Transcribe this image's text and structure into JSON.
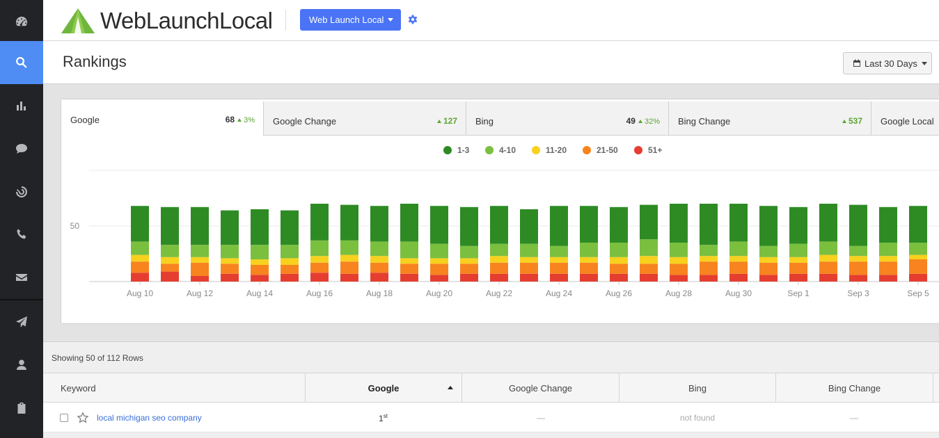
{
  "app": {
    "brand": "WebLaunchLocal",
    "brand_part1": "Web",
    "brand_part2": "Launch",
    "brand_part3": "Local"
  },
  "header": {
    "account_label": "Web Launch Local",
    "settings_icon": "gear-icon"
  },
  "sidebar": {
    "items": [
      {
        "name": "dashboard",
        "icon": "dashboard-icon",
        "active": false
      },
      {
        "name": "rankings",
        "icon": "search-icon",
        "active": true
      },
      {
        "name": "reports",
        "icon": "bar-chart-icon",
        "active": false
      },
      {
        "name": "reviews",
        "icon": "chat-bubble-icon",
        "active": false
      },
      {
        "name": "citations",
        "icon": "target-icon",
        "active": false
      },
      {
        "name": "calls",
        "icon": "phone-icon",
        "active": false
      },
      {
        "name": "email",
        "icon": "envelope-icon",
        "active": false
      },
      {
        "name": "campaigns",
        "icon": "send-icon",
        "active": false
      },
      {
        "name": "users",
        "icon": "user-icon",
        "active": false
      },
      {
        "name": "tasks",
        "icon": "clipboard-icon",
        "active": false
      }
    ]
  },
  "page": {
    "title": "Rankings",
    "date_range": "Last 30 Days"
  },
  "tabs": [
    {
      "label": "Google",
      "value": "68",
      "change": "3%"
    },
    {
      "label": "Google Change",
      "value": "127"
    },
    {
      "label": "Bing",
      "value": "49",
      "change": "32%"
    },
    {
      "label": "Bing Change",
      "value": "537"
    },
    {
      "label": "Google Local"
    }
  ],
  "colors": {
    "accent": "#4a74f5",
    "pos_1_3": "#2e8b24",
    "pos_4_10": "#7bbf3f",
    "pos_11_20": "#f7d11e",
    "pos_21_50": "#f7841f",
    "pos_51_plus": "#e53e30",
    "up": "#5aa532"
  },
  "chart_data": {
    "type": "bar",
    "stacked": true,
    "legend_position": "top",
    "grid": true,
    "y_tick_labels": [
      "50"
    ],
    "categories": [
      "Aug 10",
      "Aug 11",
      "Aug 12",
      "Aug 13",
      "Aug 14",
      "Aug 15",
      "Aug 16",
      "Aug 17",
      "Aug 18",
      "Aug 19",
      "Aug 20",
      "Aug 21",
      "Aug 22",
      "Aug 23",
      "Aug 24",
      "Aug 25",
      "Aug 26",
      "Aug 27",
      "Aug 28",
      "Aug 29",
      "Aug 30",
      "Aug 31",
      "Sep 1",
      "Sep 2",
      "Sep 3",
      "Sep 4",
      "Sep 5"
    ],
    "x_tick_labels": [
      "Aug 10",
      "Aug 12",
      "Aug 14",
      "Aug 16",
      "Aug 18",
      "Aug 20",
      "Aug 22",
      "Aug 24",
      "Aug 26",
      "Aug 28",
      "Aug 30",
      "Sep 1",
      "Sep 3",
      "Sep 5"
    ],
    "ylim": [
      0,
      100
    ],
    "series": [
      {
        "name": "51+",
        "color": "#e53e30",
        "values": [
          8,
          9,
          5,
          7,
          6,
          7,
          8,
          7,
          8,
          7,
          6,
          7,
          7,
          7,
          7,
          7,
          7,
          7,
          6,
          6,
          7,
          6,
          7,
          7,
          6,
          6,
          7
        ]
      },
      {
        "name": "21-50",
        "color": "#f7841f",
        "values": [
          10,
          7,
          12,
          9,
          9,
          8,
          9,
          11,
          9,
          9,
          10,
          9,
          10,
          10,
          10,
          10,
          9,
          9,
          10,
          12,
          11,
          11,
          10,
          11,
          12,
          12,
          13
        ]
      },
      {
        "name": "11-20",
        "color": "#f7d11e",
        "values": [
          6,
          6,
          5,
          5,
          5,
          6,
          6,
          6,
          6,
          5,
          5,
          5,
          6,
          5,
          5,
          5,
          6,
          7,
          6,
          5,
          5,
          5,
          5,
          6,
          5,
          5,
          4
        ]
      },
      {
        "name": "4-10",
        "color": "#7bbf3f",
        "values": [
          12,
          11,
          11,
          12,
          13,
          12,
          14,
          13,
          13,
          15,
          13,
          11,
          11,
          12,
          10,
          13,
          13,
          15,
          13,
          10,
          13,
          10,
          12,
          12,
          9,
          12,
          11
        ]
      },
      {
        "name": "1-3",
        "color": "#2e8b24",
        "values": [
          32,
          34,
          34,
          31,
          32,
          31,
          33,
          32,
          32,
          34,
          34,
          35,
          34,
          31,
          36,
          33,
          32,
          31,
          35,
          37,
          34,
          36,
          33,
          34,
          37,
          32,
          33
        ]
      }
    ]
  },
  "table": {
    "rows_info": "Showing 50 of 112 Rows",
    "headers": [
      "Keyword",
      "Google",
      "Google Change",
      "Bing",
      "Bing Change"
    ],
    "rows": [
      {
        "keyword": "local michigan seo company",
        "google": "1",
        "google_suffix": "st",
        "google_change": "—",
        "bing": "not found",
        "bing_change": "—"
      }
    ]
  }
}
